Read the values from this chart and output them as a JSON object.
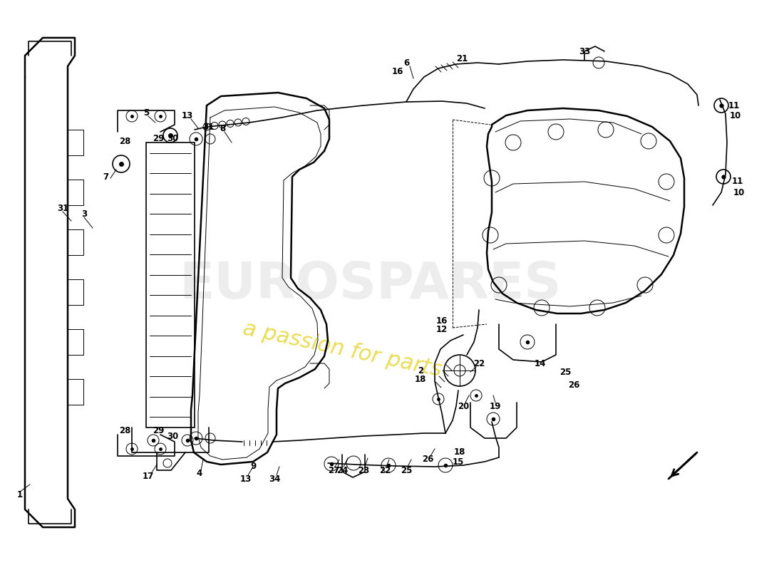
{
  "background_color": "#ffffff",
  "line_color": "#000000",
  "watermark_text1": "EUROSPARES",
  "watermark_text2": "a passion for parts",
  "watermark_color1": "#cccccc",
  "watermark_color2": "#e8d840",
  "figsize": [
    11.0,
    8.0
  ],
  "dpi": 100
}
